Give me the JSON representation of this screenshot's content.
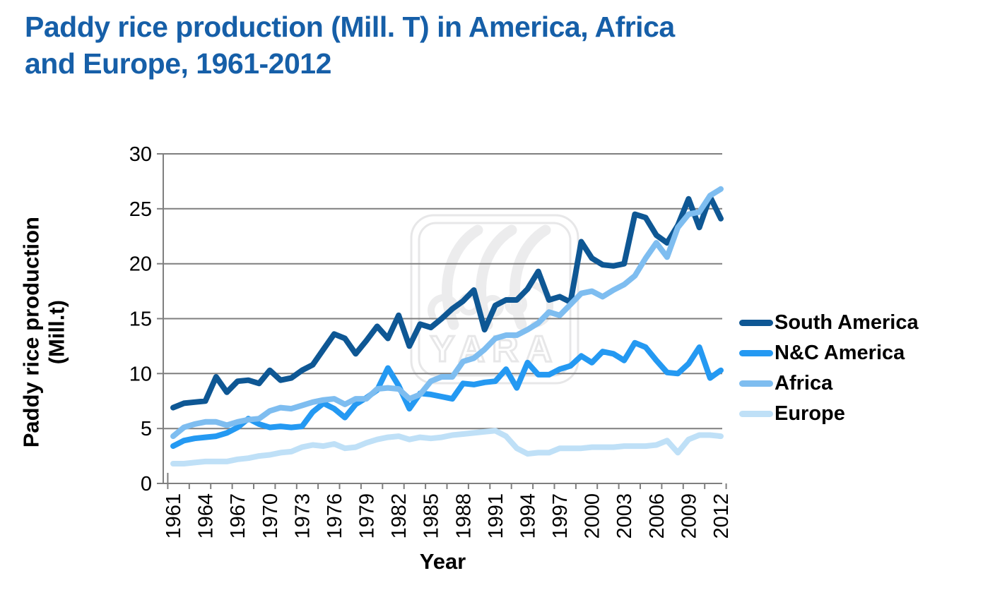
{
  "header": {
    "title_line1": "Paddy rice production (Mill. T) in America, Africa",
    "title_line2": "and Europe, 1961-2012",
    "title_color": "#165FA8"
  },
  "watermark": {
    "text": "YARA",
    "color": "#E3E3E5"
  },
  "chart_data": {
    "type": "line",
    "title": "Paddy rice production (Mill. T) in America, Africa and Europe, 1961-2012",
    "xlabel": "Year",
    "ylabel_line1": "Paddy rice production",
    "ylabel_line2": "(Mill.t)",
    "ylim": [
      0,
      30
    ],
    "y_ticks": [
      0,
      5,
      10,
      15,
      20,
      25,
      30
    ],
    "x_tick_labels": [
      "1961",
      "1964",
      "1967",
      "1970",
      "1973",
      "1976",
      "1979",
      "1982",
      "1985",
      "1988",
      "1991",
      "1994",
      "1997",
      "2000",
      "2003",
      "2006",
      "2009",
      "2012"
    ],
    "grid": true,
    "grid_color": "#7F7F7F",
    "legend_position": "right",
    "years": [
      1961,
      1962,
      1963,
      1964,
      1965,
      1966,
      1967,
      1968,
      1969,
      1970,
      1971,
      1972,
      1973,
      1974,
      1975,
      1976,
      1977,
      1978,
      1979,
      1980,
      1981,
      1982,
      1983,
      1984,
      1985,
      1986,
      1987,
      1988,
      1989,
      1990,
      1991,
      1992,
      1993,
      1994,
      1995,
      1996,
      1997,
      1998,
      1999,
      2000,
      2001,
      2002,
      2003,
      2004,
      2005,
      2006,
      2007,
      2008,
      2009,
      2010,
      2011,
      2012
    ],
    "series": [
      {
        "name": "South America",
        "color": "#0E5794",
        "values": [
          6.9,
          7.3,
          7.4,
          7.5,
          9.7,
          8.3,
          9.3,
          9.4,
          9.1,
          10.3,
          9.4,
          9.6,
          10.3,
          10.8,
          12.2,
          13.6,
          13.2,
          11.8,
          13.0,
          14.3,
          13.2,
          15.3,
          12.5,
          14.5,
          14.2,
          15.0,
          15.9,
          16.6,
          17.6,
          14.0,
          16.2,
          16.7,
          16.7,
          17.7,
          19.3,
          16.7,
          17.0,
          16.5,
          22.0,
          20.5,
          19.9,
          19.8,
          20.0,
          24.5,
          24.2,
          22.6,
          21.9,
          23.5,
          25.9,
          23.3,
          26.1,
          24.1
        ]
      },
      {
        "name": "N&C America",
        "color": "#2499F2",
        "values": [
          3.4,
          3.9,
          4.1,
          4.2,
          4.3,
          4.6,
          5.1,
          5.9,
          5.4,
          5.1,
          5.2,
          5.1,
          5.2,
          6.5,
          7.3,
          6.8,
          6.0,
          7.2,
          7.8,
          8.5,
          10.5,
          8.9,
          6.8,
          8.2,
          8.1,
          7.9,
          7.7,
          9.1,
          9.0,
          9.2,
          9.3,
          10.4,
          8.7,
          11.0,
          9.9,
          9.9,
          10.4,
          10.7,
          11.6,
          11.0,
          12.0,
          11.8,
          11.2,
          12.8,
          12.4,
          11.2,
          10.1,
          10.0,
          10.9,
          12.4,
          9.6,
          10.3
        ]
      },
      {
        "name": "Africa",
        "color": "#7EBDF0",
        "values": [
          4.3,
          5.1,
          5.4,
          5.6,
          5.6,
          5.3,
          5.6,
          5.8,
          5.9,
          6.6,
          6.9,
          6.8,
          7.1,
          7.4,
          7.6,
          7.7,
          7.2,
          7.7,
          7.7,
          8.6,
          8.7,
          8.6,
          7.7,
          8.1,
          9.3,
          9.7,
          9.7,
          11.1,
          11.4,
          12.2,
          13.2,
          13.5,
          13.5,
          14.0,
          14.6,
          15.6,
          15.3,
          16.3,
          17.3,
          17.5,
          17.0,
          17.6,
          18.1,
          18.9,
          20.5,
          21.9,
          20.6,
          23.3,
          24.5,
          24.7,
          26.2,
          26.8
        ]
      },
      {
        "name": "Europe",
        "color": "#BFE0F7",
        "values": [
          1.8,
          1.8,
          1.9,
          2.0,
          2.0,
          2.0,
          2.2,
          2.3,
          2.5,
          2.6,
          2.8,
          2.9,
          3.3,
          3.5,
          3.4,
          3.6,
          3.2,
          3.3,
          3.7,
          4.0,
          4.2,
          4.3,
          4.0,
          4.2,
          4.1,
          4.2,
          4.4,
          4.5,
          4.6,
          4.7,
          4.8,
          4.3,
          3.2,
          2.7,
          2.8,
          2.8,
          3.2,
          3.2,
          3.2,
          3.3,
          3.3,
          3.3,
          3.4,
          3.4,
          3.4,
          3.5,
          3.9,
          2.8,
          4.0,
          4.4,
          4.4,
          4.3
        ]
      }
    ]
  }
}
